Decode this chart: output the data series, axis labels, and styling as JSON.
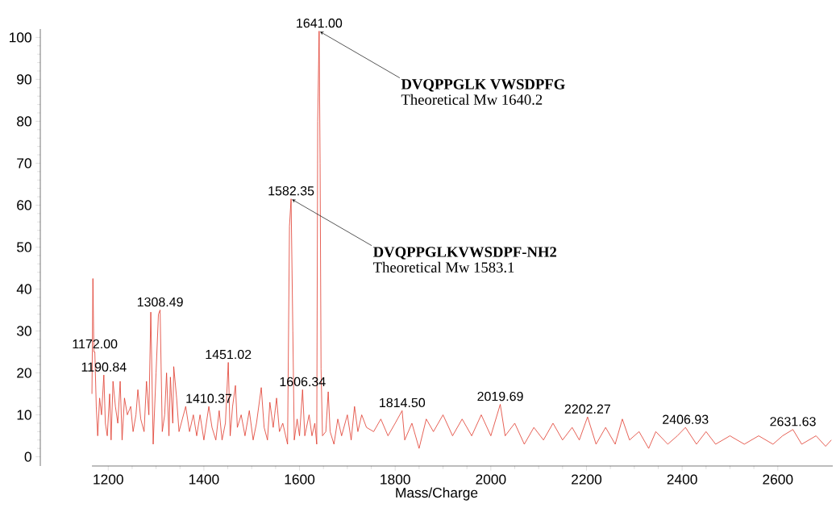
{
  "chart_data": {
    "type": "line",
    "xlabel": "Mass/Charge",
    "color": "#e0392b",
    "xlim": [
      1058,
      2715
    ],
    "ylim": [
      -2.2,
      102
    ],
    "xticks": [
      1200,
      1400,
      1600,
      1800,
      2000,
      2200,
      2400,
      2600
    ],
    "yticks": [
      0,
      10,
      20,
      30,
      40,
      50,
      60,
      70,
      80,
      90,
      100
    ],
    "x": [
      1166,
      1168,
      1170,
      1172,
      1175,
      1178,
      1182,
      1186,
      1190.84,
      1194,
      1198,
      1203,
      1206,
      1210,
      1215,
      1220,
      1225,
      1229,
      1234,
      1240,
      1247,
      1252,
      1258,
      1262,
      1268,
      1275,
      1280,
      1285,
      1289,
      1294,
      1300,
      1305,
      1308.49,
      1313,
      1318,
      1322,
      1327,
      1330,
      1335,
      1337,
      1343,
      1348,
      1355,
      1362,
      1370,
      1378,
      1385,
      1392,
      1400,
      1410.37,
      1417,
      1425,
      1432,
      1438,
      1445,
      1451.02,
      1455,
      1460,
      1466,
      1470,
      1478,
      1486,
      1495,
      1503,
      1510,
      1520,
      1526,
      1533,
      1538,
      1545,
      1552,
      1558,
      1565,
      1575,
      1579,
      1582.35,
      1586,
      1589,
      1595,
      1600,
      1606.34,
      1611,
      1620,
      1626,
      1632,
      1636,
      1638,
      1641,
      1643,
      1645,
      1648,
      1655,
      1660,
      1664,
      1672,
      1680,
      1688,
      1700,
      1708,
      1715,
      1722,
      1730,
      1740,
      1755,
      1770,
      1785,
      1800,
      1814.5,
      1820,
      1835,
      1850,
      1865,
      1880,
      1900,
      1920,
      1940,
      1960,
      1980,
      2000,
      2019.69,
      2030,
      2050,
      2070,
      2090,
      2110,
      2130,
      2150,
      2170,
      2185,
      2202.27,
      2220,
      2240,
      2260,
      2275,
      2290,
      2310,
      2330,
      2345,
      2370,
      2390,
      2406.93,
      2430,
      2450,
      2470,
      2500,
      2530,
      2560,
      2590,
      2610,
      2631.63,
      2650,
      2680,
      2700,
      2712
    ],
    "values": [
      15,
      42.5,
      25,
      25,
      12,
      5,
      14,
      10,
      19.5,
      8,
      5,
      15,
      4,
      18,
      12,
      8,
      18,
      4,
      14,
      10,
      12,
      6,
      10,
      16,
      9,
      6,
      18,
      10,
      34.5,
      3,
      20,
      34,
      35,
      6,
      10,
      20,
      5,
      19,
      8,
      21.5,
      14,
      6,
      9,
      12,
      6,
      10,
      5,
      10,
      4,
      12,
      7,
      4,
      11,
      4,
      8,
      22.5,
      5,
      12,
      17,
      7,
      10,
      5,
      11,
      4,
      8,
      16.5,
      7,
      4,
      13,
      7,
      14,
      6,
      8,
      3,
      55,
      61.5,
      30,
      4,
      9,
      5,
      16,
      5,
      10,
      5,
      8,
      3,
      80,
      101.5,
      70,
      21,
      5,
      6,
      15.5,
      6,
      3,
      9,
      5,
      10,
      4,
      12,
      6,
      10,
      7,
      6,
      9,
      5,
      8,
      11,
      4,
      8,
      2,
      9,
      6,
      10,
      5,
      9,
      5,
      10,
      5,
      12.5,
      5,
      8,
      3,
      7,
      4,
      8,
      4,
      7,
      4,
      9.5,
      3,
      7,
      3,
      9,
      4,
      6,
      2,
      6,
      3,
      5,
      7,
      3,
      6,
      3,
      5,
      3,
      5,
      3,
      5,
      6.5,
      3,
      5,
      2.5,
      4
    ],
    "annotations": [
      {
        "text": "1172.00",
        "x": 1172,
        "y": 25
      },
      {
        "text": "1190.84",
        "x": 1190.84,
        "y": 19.5
      },
      {
        "text": "1308.49",
        "x": 1308.49,
        "y": 35
      },
      {
        "text": "1410.37",
        "x": 1410.37,
        "y": 12
      },
      {
        "text": "1451.02",
        "x": 1451.02,
        "y": 22.5
      },
      {
        "text": "1582.35",
        "x": 1582.35,
        "y": 61.5
      },
      {
        "text": "1606.34",
        "x": 1606.34,
        "y": 16
      },
      {
        "text": "1641.00",
        "x": 1641,
        "y": 101.5
      },
      {
        "text": "1814.50",
        "x": 1814.5,
        "y": 11
      },
      {
        "text": "2019.69",
        "x": 2019.69,
        "y": 12.5
      },
      {
        "text": "2202.27",
        "x": 2202.27,
        "y": 9.5
      },
      {
        "text": "2406.93",
        "x": 2406.93,
        "y": 7
      },
      {
        "text": "2631.63",
        "x": 2631.63,
        "y": 6.5
      },
      {
        "text": "DVQPPGLK VWSDPFG",
        "x": 1641,
        "y": 101.5
      },
      "Theoretical Mw 1640.2",
      {
        "text": "DVQPPGLKVWSDPF-NH2",
        "x": 1582.35,
        "y": 61.5
      },
      "Theoretical Mw 1583.1"
    ]
  }
}
